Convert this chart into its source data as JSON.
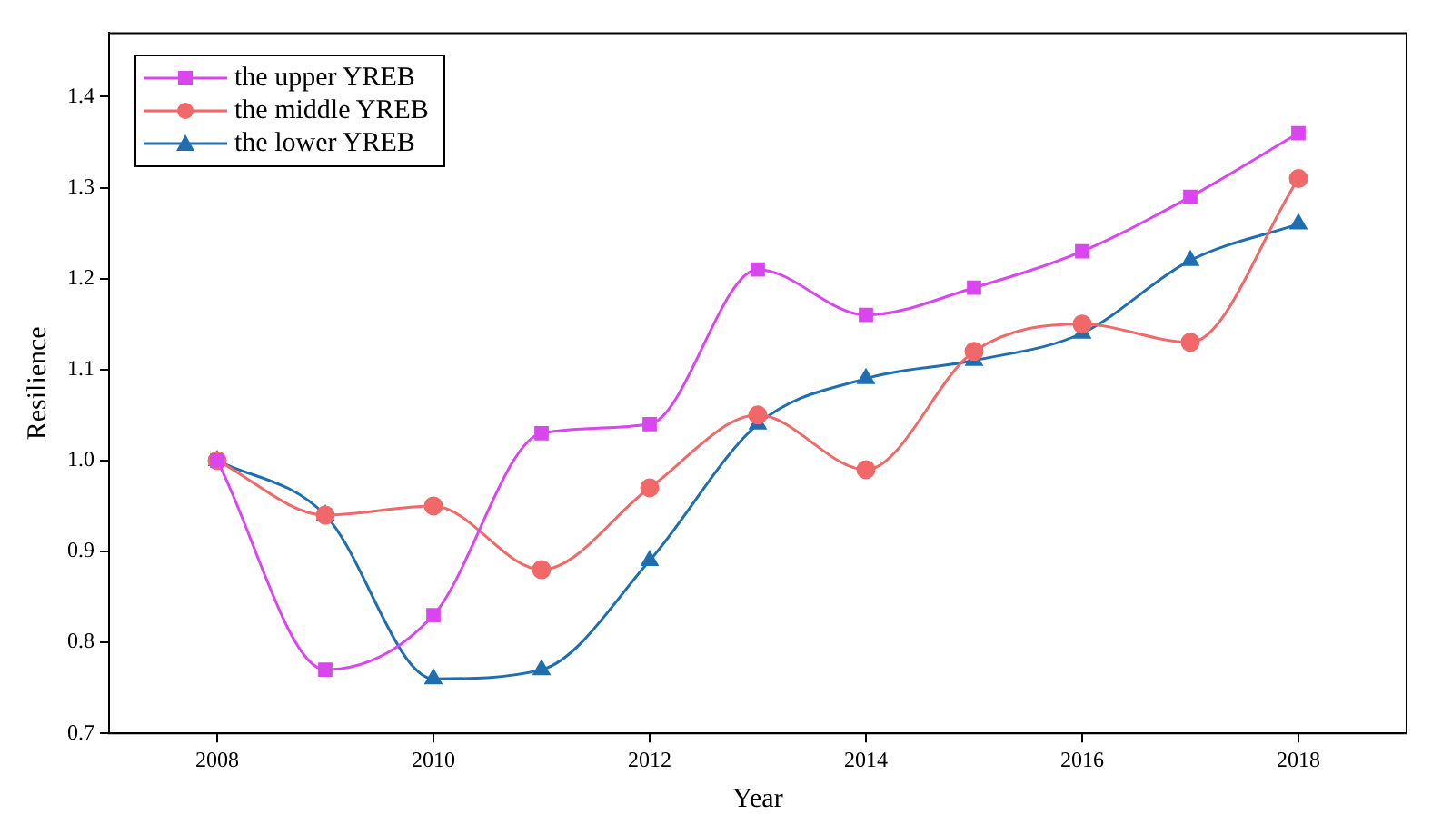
{
  "chart_data": {
    "type": "line",
    "xlabel": "Year",
    "ylabel": "Resilience",
    "x": [
      2008,
      2009,
      2010,
      2011,
      2012,
      2013,
      2014,
      2015,
      2016,
      2017,
      2018
    ],
    "series": [
      {
        "name": "the upper YREB",
        "color": "#d946ef",
        "marker": "square",
        "values": [
          1.0,
          0.77,
          0.83,
          1.03,
          1.04,
          1.21,
          1.16,
          1.19,
          1.23,
          1.29,
          1.36
        ]
      },
      {
        "name": "the middle YREB",
        "color": "#f06868",
        "marker": "circle",
        "values": [
          1.0,
          0.94,
          0.95,
          0.88,
          0.97,
          1.05,
          0.99,
          1.12,
          1.15,
          1.13,
          1.31
        ]
      },
      {
        "name": "the lower YREB",
        "color": "#1f6fb0",
        "marker": "triangle",
        "values": [
          1.0,
          0.94,
          0.76,
          0.77,
          0.89,
          1.04,
          1.09,
          1.11,
          1.14,
          1.22,
          1.26
        ]
      }
    ],
    "xlim": [
      2007,
      2019
    ],
    "xticks": [
      2008,
      2010,
      2012,
      2014,
      2016,
      2018
    ],
    "ylim": [
      0.7,
      1.47
    ],
    "yticks": [
      0.7,
      0.8,
      0.9,
      {
        "value": 1,
        "label": "1.0"
      },
      1.1,
      1.2,
      1.3,
      1.4
    ],
    "grid": false,
    "legend": "top left",
    "line_style": "solid"
  }
}
